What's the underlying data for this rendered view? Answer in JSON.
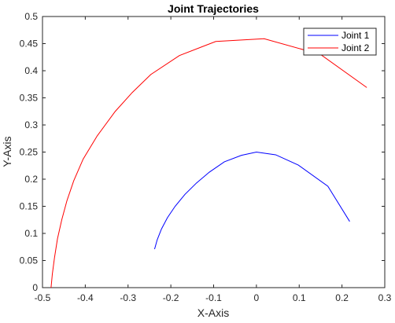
{
  "chart_data": {
    "type": "line",
    "title": "Joint Trajectories",
    "xlabel": "X-Axis",
    "ylabel": "Y-Axis",
    "xlim": [
      -0.5,
      0.3
    ],
    "ylim": [
      0,
      0.5
    ],
    "xticks": [
      -0.5,
      -0.4,
      -0.3,
      -0.2,
      -0.1,
      0,
      0.1,
      0.2,
      0.3
    ],
    "xtick_labels": [
      "-0.5",
      "-0.4",
      "-0.3",
      "-0.2",
      "-0.1",
      "0",
      "0.1",
      "0.2",
      "0.3"
    ],
    "yticks": [
      0,
      0.05,
      0.1,
      0.15,
      0.2,
      0.25,
      0.3,
      0.35,
      0.4,
      0.45,
      0.5
    ],
    "ytick_labels": [
      "0",
      "0.05",
      "0.1",
      "0.15",
      "0.2",
      "0.25",
      "0.3",
      "0.35",
      "0.4",
      "0.45",
      "0.5"
    ],
    "grid": false,
    "legend_position": "top-right",
    "series": [
      {
        "name": "Joint 1",
        "color": "#0000ff",
        "x": [
          -0.238,
          -0.232,
          -0.222,
          -0.208,
          -0.19,
          -0.167,
          -0.14,
          -0.11,
          -0.075,
          -0.035,
          0.0,
          0.045,
          0.098,
          0.167,
          0.218
        ],
        "y": [
          0.071,
          0.088,
          0.108,
          0.129,
          0.15,
          0.172,
          0.193,
          0.213,
          0.232,
          0.244,
          0.25,
          0.245,
          0.226,
          0.187,
          0.122
        ]
      },
      {
        "name": "Joint 2",
        "color": "#ff0000",
        "x": [
          -0.48,
          -0.477,
          -0.472,
          -0.465,
          -0.455,
          -0.443,
          -0.427,
          -0.405,
          -0.372,
          -0.33,
          -0.29,
          -0.247,
          -0.18,
          -0.095,
          0.018,
          0.15,
          0.258
        ],
        "y": [
          0.0,
          0.025,
          0.055,
          0.09,
          0.125,
          0.16,
          0.197,
          0.237,
          0.28,
          0.325,
          0.36,
          0.393,
          0.428,
          0.454,
          0.459,
          0.43,
          0.369
        ]
      }
    ]
  }
}
